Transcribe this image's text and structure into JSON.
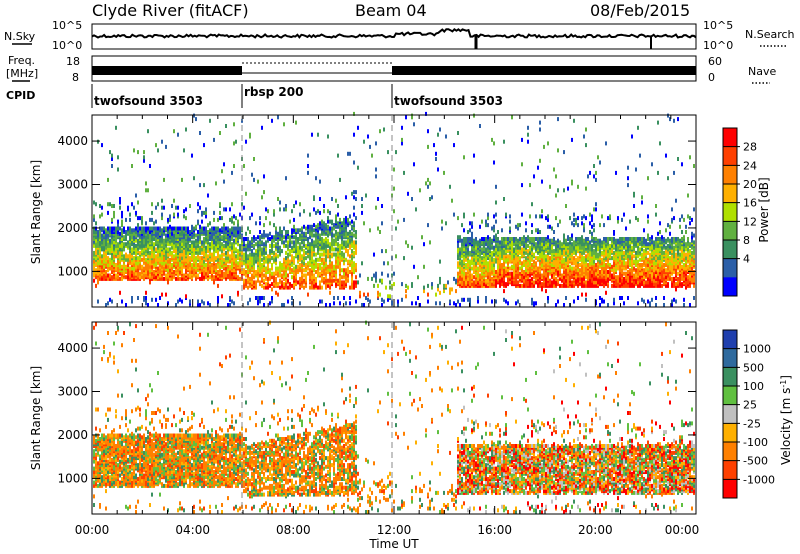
{
  "header": {
    "station": "Clyde River (fitACF)",
    "beam": "Beam 04",
    "date": "08/Feb/2015"
  },
  "top_panels": {
    "nsky_label": "N.Sky",
    "nsky_ticks": [
      "10^5",
      "10^0"
    ],
    "nsearch_label": "N.Search",
    "nsearch_ticks": [
      "10^5",
      "10^0"
    ],
    "freq_label_1": "Freq.",
    "freq_label_2": "[MHz]",
    "freq_ticks": [
      "18",
      "8"
    ],
    "nave_label": "Nave",
    "nave_ticks": [
      "60",
      "0"
    ],
    "cpid_label": "CPID"
  },
  "chart_data": [
    {
      "type": "line",
      "title": "N.Sky / N.Search",
      "x_range_ut_hours": [
        0,
        24
      ],
      "y_scale": "log",
      "ylim": [
        "10^0",
        "10^5"
      ]
    },
    {
      "type": "line",
      "title": "Freq. / Nave",
      "x_range_ut_hours": [
        0,
        24
      ],
      "y_left_range_mhz": [
        8,
        18
      ],
      "y_right_range": [
        0,
        60
      ]
    },
    {
      "type": "table",
      "title": "CPID",
      "segments": [
        {
          "label": "twofsound 3503",
          "start": "00:00",
          "end": "06:00"
        },
        {
          "label": "rbsp 200",
          "start": "06:00",
          "end": "12:00"
        },
        {
          "label": "twofsound 3503",
          "start": "12:00",
          "end": "24:00"
        }
      ]
    },
    {
      "type": "heatmap",
      "ylabel": "Slant Range [km]",
      "xlabel": "Time UT",
      "y_ticks": [
        1000,
        2000,
        3000,
        4000
      ],
      "ylim": [
        180,
        4600
      ],
      "x_ticks": [
        "00:00",
        "04:00",
        "08:00",
        "12:00",
        "16:00",
        "20:00",
        "00:00"
      ],
      "colorbar": {
        "label": "Power [dB]",
        "ticks": [
          "28",
          "24",
          "20",
          "16",
          "12",
          "8",
          "4"
        ],
        "colors": [
          "#ff0000",
          "#ff4000",
          "#ff8000",
          "#ffb000",
          "#b0e000",
          "#60b040",
          "#3a9060",
          "#2b5fa8",
          "#0000ff"
        ]
      }
    },
    {
      "type": "heatmap",
      "ylabel": "Slant Range [km]",
      "xlabel": "Time UT",
      "y_ticks": [
        1000,
        2000,
        3000,
        4000
      ],
      "ylim": [
        180,
        4600
      ],
      "x_ticks": [
        "00:00",
        "04:00",
        "08:00",
        "12:00",
        "16:00",
        "20:00",
        "00:00"
      ],
      "colorbar": {
        "label": "Velocity [m s^-1]",
        "ticks": [
          "1000",
          "500",
          "100",
          "25",
          "-25",
          "-100",
          "-500",
          "-1000"
        ],
        "colors": [
          "#1f3fae",
          "#2f6a9e",
          "#3a9060",
          "#60c040",
          "#c0c0c0",
          "#ffb000",
          "#ff8000",
          "#ff4000",
          "#ff0000"
        ]
      }
    }
  ],
  "x_axis": {
    "ticks": [
      "00:00",
      "04:00",
      "08:00",
      "12:00",
      "16:00",
      "20:00",
      "00:00"
    ],
    "label": "Time UT"
  }
}
